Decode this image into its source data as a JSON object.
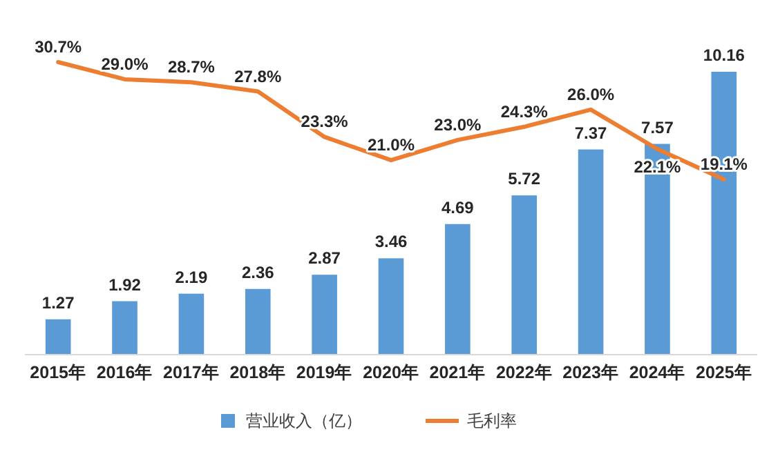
{
  "chart_data": {
    "type": "bar",
    "categories": [
      "2015年",
      "2016年",
      "2017年",
      "2018年",
      "2019年",
      "2020年",
      "2021年",
      "2022年",
      "2023年",
      "2024年",
      "2025年"
    ],
    "series": [
      {
        "name": "营业收入（亿）",
        "color": "#5b9bd5",
        "values": [
          1.27,
          1.92,
          2.19,
          2.36,
          2.87,
          3.46,
          4.69,
          5.72,
          7.37,
          7.57,
          10.16
        ],
        "value_labels": [
          "1.27",
          "1.92",
          "2.19",
          "2.36",
          "2.87",
          "3.46",
          "4.69",
          "5.72",
          "7.37",
          "7.57",
          "10.16"
        ]
      },
      {
        "name": "毛利率",
        "type": "line",
        "axis": "y2",
        "color": "#ed7d31",
        "values": [
          30.7,
          29.0,
          28.7,
          27.8,
          23.3,
          21.0,
          23.0,
          24.3,
          26.0,
          22.1,
          19.1
        ],
        "value_labels": [
          "30.7%",
          "29.0%",
          "28.7%",
          "27.8%",
          "23.3%",
          "21.0%",
          "23.0%",
          "24.3%",
          "26.0%",
          "22.1%",
          "19.1%"
        ]
      }
    ],
    "legend": "bottom",
    "marker": "none",
    "line_style": "solid"
  }
}
